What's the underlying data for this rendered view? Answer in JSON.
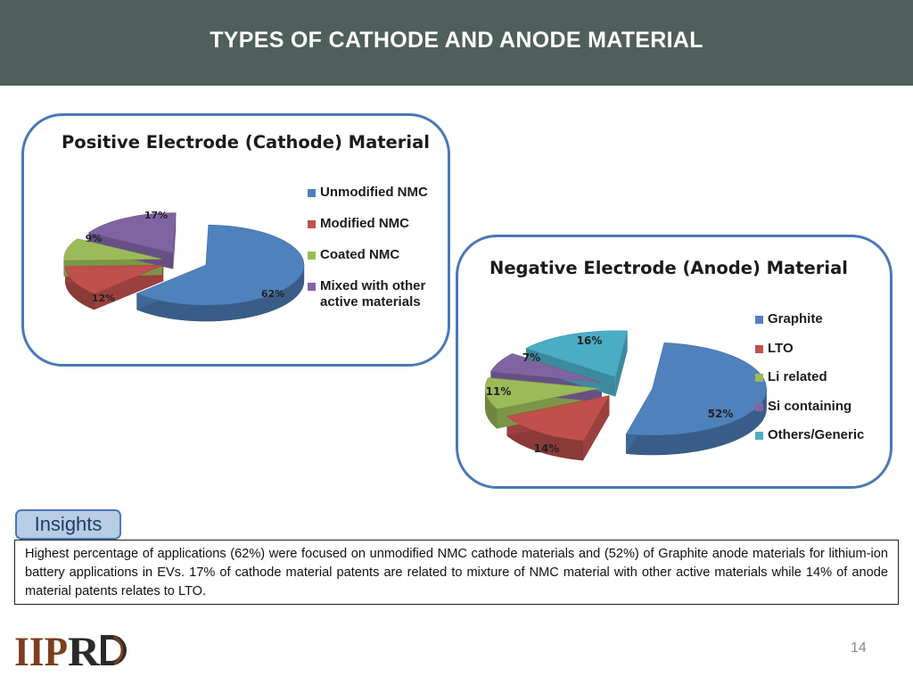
{
  "header": {
    "title": "TYPES OF CATHODE AND ANODE MATERIAL"
  },
  "chart_data": [
    {
      "type": "pie",
      "title": "Positive Electrode (Cathode) Material",
      "labels": [
        "Unmodified NMC",
        "Modified NMC",
        "Coated NMC",
        "Mixed with other active materials"
      ],
      "values": [
        62,
        12,
        9,
        17
      ],
      "value_labels": [
        "62%",
        "12%",
        "9%",
        "17%"
      ],
      "colors": [
        "#4f81bd",
        "#c0504d",
        "#9bbb59",
        "#8064a2"
      ],
      "style": "3d-exploded",
      "legend_position": "right"
    },
    {
      "type": "pie",
      "title": "Negative Electrode (Anode) Material",
      "labels": [
        "Graphite",
        "LTO",
        "Li related",
        "Si containing",
        "Others/Generic"
      ],
      "values": [
        52,
        14,
        11,
        7,
        16
      ],
      "value_labels": [
        "52%",
        "14%",
        "11%",
        "7%",
        "16%"
      ],
      "colors": [
        "#4f81bd",
        "#c0504d",
        "#9bbb59",
        "#8064a2",
        "#4bacc6"
      ],
      "style": "3d-exploded",
      "legend_position": "right"
    }
  ],
  "insights": {
    "label": "Insights",
    "text": "Highest percentage of applications (62%) were focused on unmodified NMC cathode materials and (52%) of Graphite anode materials for lithium-ion battery applications in EVs. 17% of cathode material patents are related to mixture of NMC material with other active materials while 14% of anode material patents relates to LTO."
  },
  "footer": {
    "logo_text": "IIPRD",
    "page_number": "14"
  }
}
